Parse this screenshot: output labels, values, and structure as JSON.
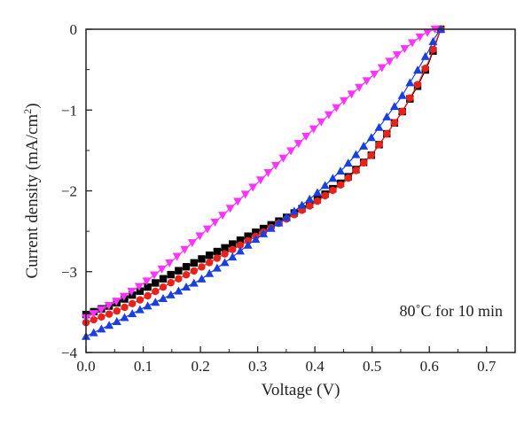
{
  "chart_data": {
    "type": "scatter",
    "title": "",
    "xlabel": "Voltage (V)",
    "ylabel_main": "Current density (mA/cm",
    "ylabel_sup": "2",
    "ylabel_close": ")",
    "xlim": [
      0.0,
      0.75
    ],
    "ylim": [
      -4,
      0
    ],
    "x_ticks": [
      0.0,
      0.1,
      0.2,
      0.3,
      0.4,
      0.5,
      0.6,
      0.7
    ],
    "x_tick_labels": [
      "0.0",
      "0.1",
      "0.2",
      "0.3",
      "0.4",
      "0.5",
      "0.6",
      "0.7"
    ],
    "y_ticks": [
      0,
      -1,
      -2,
      -3,
      -4
    ],
    "y_tick_labels": [
      "0",
      "−1",
      "−2",
      "−3",
      "−4"
    ],
    "annotation": "80˚C for 10 min",
    "grid": false,
    "legend": "none",
    "series": [
      {
        "marker": "square",
        "color": "#000000",
        "x": [
          0.0,
          0.05,
          0.1,
          0.15,
          0.2,
          0.25,
          0.3,
          0.35,
          0.4,
          0.45,
          0.5,
          0.55,
          0.58,
          0.6,
          0.61,
          0.62
        ],
        "y": [
          -3.53,
          -3.4,
          -3.22,
          -3.03,
          -2.85,
          -2.68,
          -2.5,
          -2.33,
          -2.13,
          -1.88,
          -1.55,
          -1.05,
          -0.7,
          -0.4,
          -0.2,
          0.0
        ]
      },
      {
        "marker": "circle",
        "color": "#e8221a",
        "x": [
          0.0,
          0.05,
          0.1,
          0.15,
          0.2,
          0.25,
          0.3,
          0.35,
          0.4,
          0.45,
          0.5,
          0.55,
          0.58,
          0.6,
          0.61,
          0.62
        ],
        "y": [
          -3.63,
          -3.5,
          -3.33,
          -3.13,
          -2.95,
          -2.75,
          -2.55,
          -2.35,
          -2.15,
          -1.9,
          -1.55,
          -1.05,
          -0.68,
          -0.38,
          -0.18,
          0.0
        ]
      },
      {
        "marker": "triangle-up",
        "color": "#1a3fe0",
        "x": [
          0.0,
          0.05,
          0.1,
          0.15,
          0.2,
          0.25,
          0.3,
          0.35,
          0.4,
          0.45,
          0.5,
          0.55,
          0.58,
          0.6,
          0.61,
          0.62
        ],
        "y": [
          -3.8,
          -3.63,
          -3.45,
          -3.28,
          -3.1,
          -2.85,
          -2.58,
          -2.33,
          -2.05,
          -1.72,
          -1.33,
          -0.85,
          -0.5,
          -0.25,
          -0.1,
          0.0
        ]
      },
      {
        "marker": "triangle-down",
        "color": "#ff33ff",
        "x": [
          0.0,
          0.05,
          0.1,
          0.15,
          0.2,
          0.25,
          0.3,
          0.35,
          0.4,
          0.45,
          0.5,
          0.55,
          0.59,
          0.61
        ],
        "y": [
          -3.57,
          -3.38,
          -3.15,
          -2.87,
          -2.55,
          -2.23,
          -1.9,
          -1.56,
          -1.22,
          -0.89,
          -0.58,
          -0.28,
          -0.06,
          0.0
        ]
      }
    ]
  }
}
